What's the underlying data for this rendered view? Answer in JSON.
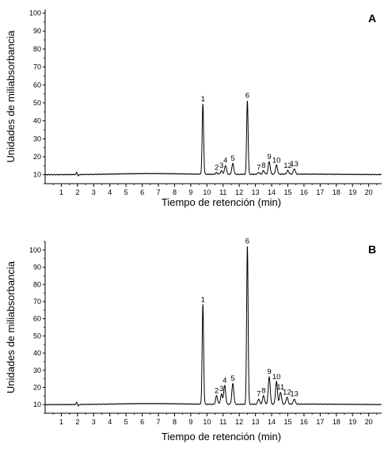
{
  "chart_data": [
    {
      "type": "line",
      "panel_label": "A",
      "xlabel": "Tiempo de retención (min)",
      "ylabel": "Unidades  de miliabsorbancia",
      "xlim": [
        0,
        20.8
      ],
      "ylim": [
        5,
        102
      ],
      "x_ticks": [
        1,
        2,
        3,
        4,
        5,
        6,
        7,
        8,
        9,
        10,
        11,
        12,
        13,
        14,
        15,
        16,
        17,
        18,
        19,
        20
      ],
      "y_ticks": [
        10,
        20,
        30,
        40,
        50,
        60,
        70,
        80,
        90,
        100
      ],
      "grid": false,
      "baseline": 10,
      "peaks": [
        {
          "label": "1",
          "x": 9.75,
          "y": 49
        },
        {
          "label": "2",
          "x": 10.6,
          "y": 11
        },
        {
          "label": "3",
          "x": 10.9,
          "y": 12
        },
        {
          "label": "4",
          "x": 11.15,
          "y": 15
        },
        {
          "label": "5",
          "x": 11.6,
          "y": 16
        },
        {
          "label": "6",
          "x": 12.5,
          "y": 51
        },
        {
          "label": "7",
          "x": 13.2,
          "y": 11
        },
        {
          "label": "8",
          "x": 13.5,
          "y": 12
        },
        {
          "label": "9",
          "x": 13.85,
          "y": 17
        },
        {
          "label": "10",
          "x": 14.3,
          "y": 15
        },
        {
          "label": "12",
          "x": 15.0,
          "y": 12
        },
        {
          "label": "13",
          "x": 15.4,
          "y": 13
        }
      ]
    },
    {
      "type": "line",
      "panel_label": "B",
      "xlabel": "Tiempo de retención (min)",
      "ylabel": "Unidades  de miliabsorbancia",
      "xlim": [
        0,
        20.8
      ],
      "ylim": [
        5,
        105
      ],
      "x_ticks": [
        1,
        2,
        3,
        4,
        5,
        6,
        7,
        8,
        9,
        10,
        11,
        12,
        13,
        14,
        15,
        16,
        17,
        18,
        19,
        20
      ],
      "y_ticks": [
        10,
        20,
        30,
        40,
        50,
        60,
        70,
        80,
        90,
        100
      ],
      "grid": false,
      "baseline": 10,
      "peaks": [
        {
          "label": "1",
          "x": 9.75,
          "y": 68
        },
        {
          "label": "2",
          "x": 10.6,
          "y": 15
        },
        {
          "label": "3",
          "x": 10.9,
          "y": 16
        },
        {
          "label": "4",
          "x": 11.1,
          "y": 21
        },
        {
          "label": "5",
          "x": 11.6,
          "y": 22
        },
        {
          "label": "6",
          "x": 12.5,
          "y": 102
        },
        {
          "label": "7",
          "x": 13.2,
          "y": 13
        },
        {
          "label": "8",
          "x": 13.5,
          "y": 15
        },
        {
          "label": "9",
          "x": 13.85,
          "y": 26
        },
        {
          "label": "10",
          "x": 14.3,
          "y": 23
        },
        {
          "label": "11",
          "x": 14.55,
          "y": 17
        },
        {
          "label": "12",
          "x": 14.95,
          "y": 14
        },
        {
          "label": "13",
          "x": 15.4,
          "y": 13
        }
      ]
    }
  ]
}
